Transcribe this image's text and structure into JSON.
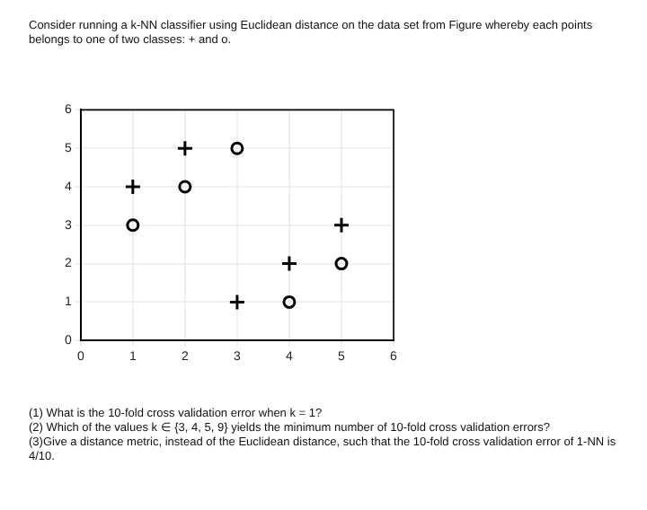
{
  "chart_data": {
    "type": "scatter",
    "title": "Consider running a k-NN classifier using Euclidean distance on the data set from Figure whereby each points belongs to one of two classes: + and o.",
    "annotations": [
      "(1) What is the 10-fold cross validation error when k = 1?",
      "(2) Which of the values k ∈ {3, 4, 5, 9} yields the minimum number of 10-fold cross validation errors?",
      "(3)Give a distance metric, instead of the Euclidean distance, such that the 10-fold cross validation error of 1-NN is 4/10."
    ],
    "series": [
      {
        "marker": "cross",
        "color": "#000000",
        "x": [
          1,
          2,
          3,
          4,
          5
        ],
        "values": [
          4,
          5,
          1,
          2,
          3
        ]
      },
      {
        "marker": "circle",
        "color": "#000000",
        "x": [
          1,
          2,
          3,
          4,
          5
        ],
        "values": [
          3,
          4,
          5,
          1,
          2
        ]
      }
    ],
    "xlim": [
      0,
      6
    ],
    "xticks": [
      0,
      1,
      2,
      3,
      4,
      5,
      6
    ],
    "ylim": [
      0,
      6
    ],
    "yticks": [
      0,
      1,
      2,
      3,
      4,
      5,
      6
    ],
    "grid": true,
    "legend": false
  }
}
